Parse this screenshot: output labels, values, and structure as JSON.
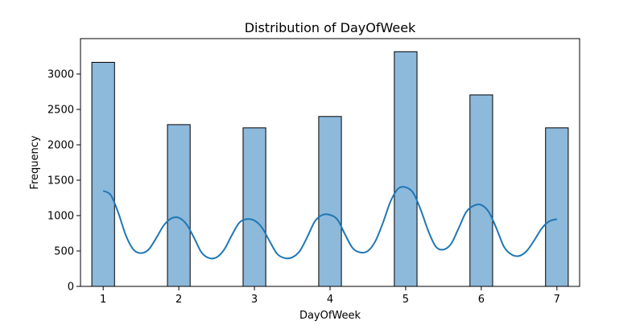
{
  "chart_data": {
    "type": "bar",
    "title": "Distribution of DayOfWeek",
    "xlabel": "DayOfWeek",
    "ylabel": "Frequency",
    "x_ticks": [
      1,
      2,
      3,
      4,
      5,
      6,
      7
    ],
    "x_tick_labels": [
      "1",
      "2",
      "3",
      "4",
      "5",
      "6",
      "7"
    ],
    "y_ticks": [
      0,
      500,
      1000,
      1500,
      2000,
      2500,
      3000
    ],
    "y_tick_labels": [
      "0",
      "500",
      "1000",
      "1500",
      "2000",
      "2500",
      "3000"
    ],
    "xlim": [
      0.7,
      7.3
    ],
    "ylim": [
      0,
      3500
    ],
    "bin_width": 0.3,
    "categories": [
      1,
      2,
      3,
      4,
      5,
      6,
      7
    ],
    "values": [
      3165,
      2285,
      2240,
      2400,
      3315,
      2705,
      2240
    ],
    "kde": {
      "x": [
        1.0,
        1.1,
        1.2,
        1.3,
        1.4,
        1.5,
        1.6,
        1.7,
        1.8,
        1.9,
        2.0,
        2.1,
        2.2,
        2.3,
        2.4,
        2.5,
        2.6,
        2.7,
        2.8,
        2.9,
        3.0,
        3.1,
        3.2,
        3.3,
        3.4,
        3.5,
        3.6,
        3.7,
        3.8,
        3.9,
        4.0,
        4.1,
        4.2,
        4.3,
        4.4,
        4.5,
        4.6,
        4.7,
        4.8,
        4.9,
        5.0,
        5.1,
        5.2,
        5.3,
        5.4,
        5.5,
        5.6,
        5.7,
        5.8,
        5.9,
        6.0,
        6.1,
        6.2,
        6.3,
        6.4,
        6.5,
        6.6,
        6.7,
        6.8,
        6.9,
        7.0
      ],
      "y": [
        1350,
        1290,
        1040,
        720,
        520,
        470,
        520,
        680,
        860,
        960,
        970,
        880,
        690,
        480,
        400,
        410,
        520,
        720,
        900,
        950,
        930,
        830,
        640,
        460,
        400,
        410,
        500,
        700,
        920,
        1010,
        1010,
        940,
        730,
        540,
        480,
        500,
        640,
        900,
        1200,
        1380,
        1400,
        1320,
        1080,
        780,
        560,
        520,
        600,
        820,
        1050,
        1140,
        1150,
        1050,
        820,
        560,
        450,
        430,
        500,
        650,
        820,
        920,
        950
      ]
    },
    "colors": {
      "bar_fill": "#8db9db",
      "bar_edge": "#000000",
      "kde_line": "#1f77b4",
      "axes": "#000000"
    },
    "grid": false
  }
}
